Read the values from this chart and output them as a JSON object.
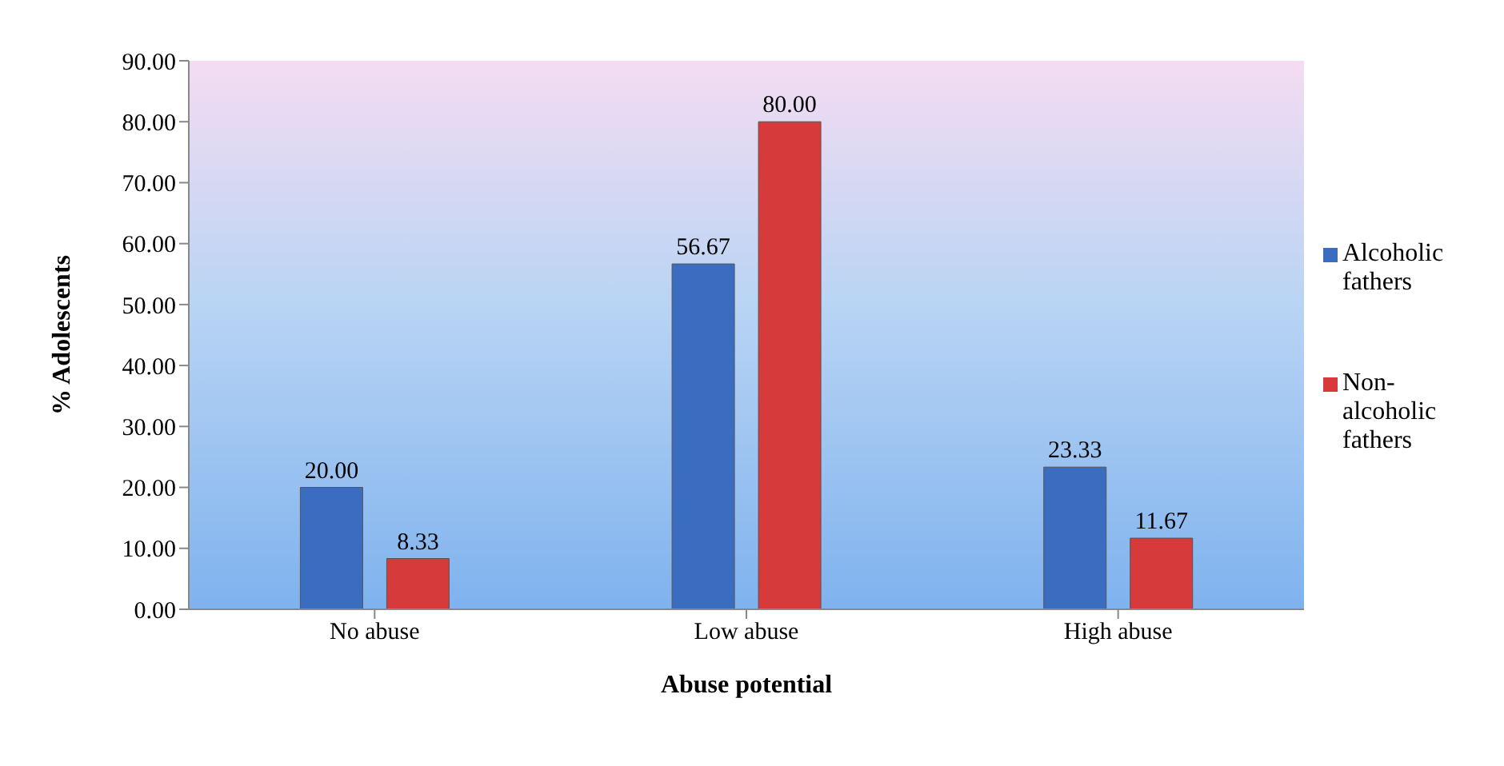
{
  "chart_data": {
    "type": "bar",
    "xlabel": "Abuse potential",
    "ylabel": "% Adolescents",
    "categories": [
      "No abuse",
      "Low abuse",
      "High abuse"
    ],
    "series": [
      {
        "name": "Alcoholic fathers",
        "color": "#3a6cc0",
        "values": [
          20.0,
          56.67,
          23.33
        ],
        "value_labels": [
          "20.00",
          "56.67",
          "23.33"
        ]
      },
      {
        "name": "Non-alcoholic fathers",
        "color": "#d63a3a",
        "values": [
          8.33,
          80.0,
          11.67
        ],
        "value_labels": [
          "8.33",
          "80.00",
          "11.67"
        ]
      }
    ],
    "ylim": [
      0,
      90
    ],
    "yticks": [
      {
        "value": 0,
        "label": "0.00"
      },
      {
        "value": 10,
        "label": "10.00"
      },
      {
        "value": 20,
        "label": "20.00"
      },
      {
        "value": 30,
        "label": "30.00"
      },
      {
        "value": 40,
        "label": "40.00"
      },
      {
        "value": 50,
        "label": "50.00"
      },
      {
        "value": 60,
        "label": "60.00"
      },
      {
        "value": 70,
        "label": "70.00"
      },
      {
        "value": 80,
        "label": "80.00"
      },
      {
        "value": 90,
        "label": "90.00"
      }
    ],
    "legend": "right"
  }
}
